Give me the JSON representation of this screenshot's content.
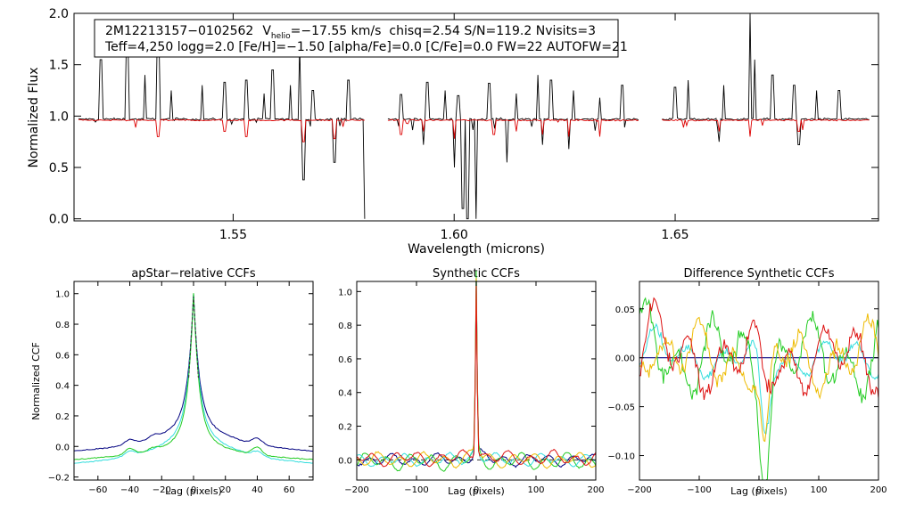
{
  "colors": {
    "observed": "#000000",
    "model": "#dd0000",
    "navy": "#000080",
    "cyan": "#33dddd",
    "green": "#22cc22",
    "orange": "#eebb00",
    "red": "#dd1111",
    "dash": "#333333"
  },
  "infobox": {
    "star": "2M12213157−0102562",
    "v_prefix": "V",
    "v_sub": "helio",
    "v_value": "=−17.55 km/s",
    "rest1": "chisq=2.54  S/N=119.2  Nvisits=3",
    "line2": "Teff=4,250 logg=2.0 [Fe/H]=−1.50 [alpha/Fe]=0.0 [C/Fe]=0.0 FW=22 AUTOFW=21"
  },
  "chart_data": [
    {
      "type": "line",
      "name": "spectrum",
      "title": "",
      "xlabel": "Wavelength (microns)",
      "ylabel": "Normalized Flux",
      "xlim": [
        1.514,
        1.696
      ],
      "ylim": [
        -0.02,
        2.0
      ],
      "xticks": [
        1.55,
        1.6,
        1.65
      ],
      "xtick_labels": [
        "1.55",
        "1.60",
        "1.65"
      ],
      "yticks": [
        0.0,
        0.5,
        1.0,
        1.5,
        2.0
      ],
      "ytick_labels": [
        "0.0",
        "0.5",
        "1.0",
        "1.5",
        "2.0"
      ],
      "segments": [
        [
          1.515,
          1.58
        ],
        [
          1.585,
          1.642
        ],
        [
          1.647,
          1.694
        ]
      ],
      "series": [
        {
          "name": "observed",
          "color_key": "observed",
          "baseline": 0.97,
          "emission": [
            [
              1.52,
              1.55
            ],
            [
              1.526,
              1.72
            ],
            [
              1.53,
              1.4
            ],
            [
              1.533,
              1.8
            ],
            [
              1.536,
              1.25
            ],
            [
              1.543,
              1.3
            ],
            [
              1.548,
              1.33
            ],
            [
              1.553,
              1.35
            ],
            [
              1.557,
              1.22
            ],
            [
              1.559,
              1.45
            ],
            [
              1.563,
              1.3
            ],
            [
              1.565,
              1.7
            ],
            [
              1.568,
              1.25
            ],
            [
              1.576,
              1.35
            ],
            [
              1.588,
              1.21
            ],
            [
              1.594,
              1.33
            ],
            [
              1.598,
              1.25
            ],
            [
              1.601,
              1.2
            ],
            [
              1.608,
              1.32
            ],
            [
              1.614,
              1.22
            ],
            [
              1.619,
              1.4
            ],
            [
              1.622,
              1.35
            ],
            [
              1.627,
              1.25
            ],
            [
              1.633,
              1.18
            ],
            [
              1.638,
              1.3
            ],
            [
              1.65,
              1.28
            ],
            [
              1.653,
              1.35
            ],
            [
              1.661,
              1.3
            ],
            [
              1.667,
              2.05
            ],
            [
              1.668,
              1.55
            ],
            [
              1.672,
              1.4
            ],
            [
              1.677,
              1.3
            ],
            [
              1.682,
              1.25
            ],
            [
              1.687,
              1.25
            ]
          ],
          "absorption": [
            [
              1.533,
              0.62
            ],
            [
              1.548,
              0.72
            ],
            [
              1.553,
              0.6
            ],
            [
              1.566,
              0.38
            ],
            [
              1.573,
              0.55
            ],
            [
              1.58,
              0.0
            ],
            [
              1.588,
              0.7
            ],
            [
              1.593,
              0.72
            ],
            [
              1.598,
              0.65
            ],
            [
              1.6,
              0.5
            ],
            [
              1.602,
              0.1
            ],
            [
              1.603,
              0.0
            ],
            [
              1.605,
              0.0
            ],
            [
              1.608,
              0.3
            ],
            [
              1.612,
              0.55
            ],
            [
              1.614,
              0.0
            ],
            [
              1.62,
              0.72
            ],
            [
              1.626,
              0.68
            ],
            [
              1.633,
              0.38
            ],
            [
              1.66,
              0.75
            ],
            [
              1.667,
              0.62
            ],
            [
              1.678,
              0.72
            ]
          ]
        },
        {
          "name": "model",
          "color_key": "model",
          "baseline": 0.96,
          "absorption": [
            [
              1.533,
              0.8
            ],
            [
              1.548,
              0.85
            ],
            [
              1.553,
              0.8
            ],
            [
              1.566,
              0.75
            ],
            [
              1.573,
              0.78
            ],
            [
              1.588,
              0.82
            ],
            [
              1.593,
              0.85
            ],
            [
              1.6,
              0.78
            ],
            [
              1.609,
              0.82
            ],
            [
              1.614,
              0.85
            ],
            [
              1.62,
              0.82
            ],
            [
              1.626,
              0.8
            ],
            [
              1.633,
              0.8
            ],
            [
              1.66,
              0.85
            ],
            [
              1.667,
              0.8
            ],
            [
              1.678,
              0.85
            ]
          ]
        }
      ]
    },
    {
      "type": "line",
      "name": "apstar-relative",
      "title": "apStar−relative CCFs",
      "xlabel": "Lag (pixels)",
      "ylabel": "Normalized CCF",
      "xlim": [
        -75,
        75
      ],
      "ylim": [
        -0.22,
        1.08
      ],
      "xticks": [
        -60,
        -40,
        -20,
        0,
        20,
        40,
        60
      ],
      "xtick_labels": [
        "−60",
        "−40",
        "−20",
        "0",
        "20",
        "40",
        "60"
      ],
      "yticks": [
        -0.2,
        0.0,
        0.2,
        0.4,
        0.6,
        0.8,
        1.0
      ],
      "ytick_labels": [
        "−0.2",
        "0.0",
        "0.2",
        "0.4",
        "0.6",
        "0.8",
        "1.0"
      ],
      "series": [
        {
          "name": "navy",
          "color_key": "navy",
          "peak": 1.0,
          "base": 0.0,
          "width": 3.5,
          "tail": 0.22,
          "tail_width": 22,
          "bumps": [
            [
              -40,
              0.03
            ],
            [
              -25,
              0.02
            ],
            [
              40,
              0.04
            ]
          ]
        },
        {
          "name": "cyan",
          "color_key": "cyan",
          "peak": 1.0,
          "base": -0.08,
          "width": 3.5,
          "tail": 0.25,
          "tail_width": 22,
          "bumps": [
            [
              -40,
              0.03
            ],
            [
              40,
              0.03
            ]
          ]
        },
        {
          "name": "green",
          "color_key": "green",
          "peak": 1.0,
          "base": -0.05,
          "width": 3.5,
          "tail": 0.16,
          "tail_width": 18,
          "bumps": [
            [
              -40,
              0.04
            ],
            [
              -25,
              0.02
            ],
            [
              40,
              0.05
            ]
          ]
        }
      ]
    },
    {
      "type": "line",
      "name": "synthetic",
      "title": "Synthetic CCFs",
      "xlabel": "Lag (pixels)",
      "ylabel": "",
      "xlim": [
        -200,
        200
      ],
      "ylim": [
        -0.12,
        1.06
      ],
      "xticks": [
        -200,
        -100,
        0,
        100,
        200
      ],
      "xtick_labels": [
        "−200",
        "−100",
        "0",
        "100",
        "200"
      ],
      "yticks": [
        0.0,
        0.2,
        0.4,
        0.6,
        0.8,
        1.0
      ],
      "ytick_labels": [
        "0.0",
        "0.2",
        "0.4",
        "0.6",
        "0.8",
        "1.0"
      ],
      "series": [
        {
          "name": "navy",
          "color_key": "navy",
          "peak": 1.0,
          "amp": 0.025,
          "offset": 0.0
        },
        {
          "name": "green",
          "color_key": "green",
          "peak": 1.0,
          "amp": 0.035,
          "offset": -0.01
        },
        {
          "name": "cyan",
          "color_key": "cyan",
          "peak": 1.0,
          "amp": 0.025,
          "offset": 0.0
        },
        {
          "name": "orange",
          "color_key": "orange",
          "peak": 1.0,
          "amp": 0.03,
          "offset": 0.0
        },
        {
          "name": "red",
          "color_key": "red",
          "peak": 1.0,
          "amp": 0.03,
          "offset": 0.01
        }
      ]
    },
    {
      "type": "line",
      "name": "difference",
      "title": "Difference Synthetic CCFs",
      "xlabel": "Lag (pixels)",
      "ylabel": "",
      "xlim": [
        -200,
        200
      ],
      "ylim": [
        -0.125,
        0.078
      ],
      "xticks": [
        -200,
        -100,
        0,
        100,
        200
      ],
      "xtick_labels": [
        "−200",
        "−100",
        "0",
        "100",
        "200"
      ],
      "yticks": [
        -0.1,
        -0.05,
        0.0,
        0.05
      ],
      "ytick_labels": [
        "−0.10",
        "−0.05",
        "0.00",
        "0.05"
      ],
      "series": [
        {
          "name": "navy",
          "color_key": "navy",
          "amp": 0.0,
          "dip": 0.0
        },
        {
          "name": "cyan",
          "color_key": "cyan",
          "amp": 0.012,
          "dip": -0.08
        },
        {
          "name": "green",
          "color_key": "green",
          "amp": 0.025,
          "dip": -0.1
        },
        {
          "name": "orange",
          "color_key": "orange",
          "amp": 0.022,
          "dip": -0.11
        },
        {
          "name": "red",
          "color_key": "red",
          "amp": 0.022,
          "dip": -0.03
        }
      ]
    }
  ]
}
